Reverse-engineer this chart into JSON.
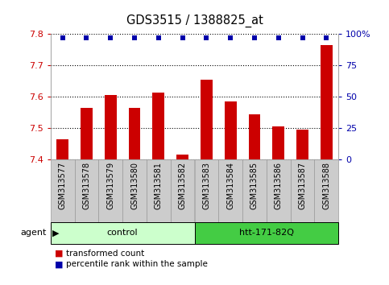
{
  "title": "GDS3515 / 1388825_at",
  "samples": [
    "GSM313577",
    "GSM313578",
    "GSM313579",
    "GSM313580",
    "GSM313581",
    "GSM313582",
    "GSM313583",
    "GSM313584",
    "GSM313585",
    "GSM313586",
    "GSM313587",
    "GSM313588"
  ],
  "bar_values": [
    7.465,
    7.565,
    7.605,
    7.565,
    7.615,
    7.415,
    7.655,
    7.585,
    7.545,
    7.505,
    7.495,
    7.765
  ],
  "bar_color": "#cc0000",
  "percentile_color": "#0000aa",
  "percentile_pct": 97,
  "ylim_left": [
    7.4,
    7.8
  ],
  "ylim_right": [
    0,
    100
  ],
  "yticks_left": [
    7.4,
    7.5,
    7.6,
    7.7,
    7.8
  ],
  "yticks_right": [
    0,
    25,
    50,
    75,
    100
  ],
  "groups": [
    {
      "label": "control",
      "start": 0,
      "end": 6,
      "color": "#ccffcc"
    },
    {
      "label": "htt-171-82Q",
      "start": 6,
      "end": 12,
      "color": "#44cc44"
    }
  ],
  "agent_label": "agent",
  "legend_bar_label": "transformed count",
  "legend_dot_label": "percentile rank within the sample",
  "bar_bottom": 7.4,
  "label_box_color": "#cccccc",
  "label_box_edge": "#999999",
  "bar_width": 0.5
}
